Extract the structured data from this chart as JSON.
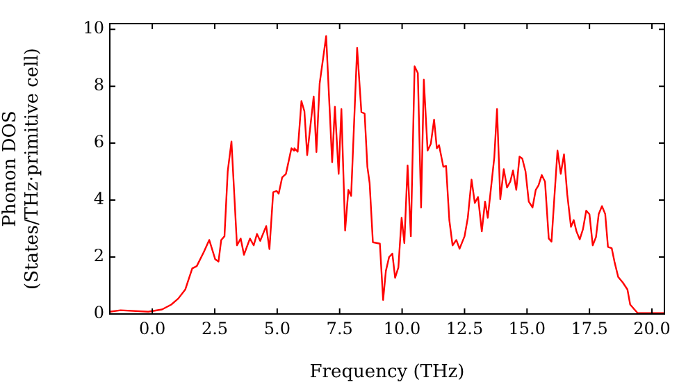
{
  "chart_data": {
    "type": "line",
    "xlabel": "Frequency (THz)",
    "ylabel": "Phonon DOS\n(States/THz·primitive cell)",
    "xlim": [
      -1.7,
      20.5
    ],
    "ylim": [
      0,
      10.2
    ],
    "xticks": [
      {
        "value": 0,
        "label": "0.0"
      },
      {
        "value": 2.5,
        "label": "2.5"
      },
      {
        "value": 5,
        "label": "5.0"
      },
      {
        "value": 7.5,
        "label": "7.5"
      },
      {
        "value": 10,
        "label": "10.0"
      },
      {
        "value": 12.5,
        "label": "12.5"
      },
      {
        "value": 15,
        "label": "15.0"
      },
      {
        "value": 17.5,
        "label": "17.5"
      },
      {
        "value": 20,
        "label": "20.0"
      }
    ],
    "yticks": [
      0,
      2,
      4,
      6,
      8,
      10
    ],
    "grid": false,
    "legend": false,
    "marker": "none",
    "line_style": "solid",
    "series": [
      {
        "color": "#ff0000",
        "x": [
          -1.7,
          -1.27,
          -0.16,
          0.39,
          0.76,
          1.04,
          1.32,
          1.6,
          1.78,
          2.06,
          2.28,
          2.52,
          2.65,
          2.76,
          2.89,
          3.02,
          3.17,
          3.39,
          3.54,
          3.67,
          3.91,
          4.06,
          4.19,
          4.32,
          4.56,
          4.69,
          4.84,
          4.98,
          5.06,
          5.2,
          5.35,
          5.57,
          5.67,
          5.69,
          5.82,
          5.97,
          6.09,
          6.2,
          6.46,
          6.57,
          6.7,
          6.96,
          7.2,
          7.31,
          7.46,
          7.57,
          7.72,
          7.85,
          7.96,
          8.2,
          8.37,
          8.5,
          8.61,
          8.7,
          8.83,
          9.11,
          9.24,
          9.35,
          9.48,
          9.61,
          9.72,
          9.85,
          9.98,
          10.09,
          10.22,
          10.35,
          10.5,
          10.63,
          10.76,
          10.87,
          11.02,
          11.15,
          11.28,
          11.39,
          11.48,
          11.65,
          11.76,
          11.89,
          12.02,
          12.17,
          12.3,
          12.5,
          12.63,
          12.78,
          12.91,
          13.04,
          13.19,
          13.32,
          13.43,
          13.69,
          13.8,
          13.93,
          14.07,
          14.2,
          14.33,
          14.44,
          14.57,
          14.7,
          14.81,
          14.94,
          15.07,
          15.22,
          15.35,
          15.46,
          15.59,
          15.72,
          15.87,
          15.98,
          16.09,
          16.22,
          16.35,
          16.48,
          16.61,
          16.76,
          16.87,
          16.98,
          17.11,
          17.24,
          17.37,
          17.5,
          17.63,
          17.76,
          17.87,
          18.0,
          18.13,
          18.24,
          18.39,
          18.5,
          18.65,
          18.83,
          19.02,
          19.13,
          19.3,
          19.43,
          20.5
        ],
        "values": [
          0.08,
          0.13,
          0.08,
          0.16,
          0.33,
          0.54,
          0.86,
          1.6,
          1.68,
          2.17,
          2.6,
          1.92,
          1.84,
          2.6,
          2.73,
          5.01,
          6.06,
          2.41,
          2.65,
          2.08,
          2.65,
          2.41,
          2.81,
          2.57,
          3.09,
          2.28,
          4.28,
          4.32,
          4.23,
          4.8,
          4.92,
          5.82,
          5.74,
          5.82,
          5.7,
          7.48,
          7.12,
          5.58,
          7.64,
          5.69,
          8.1,
          9.76,
          5.33,
          7.28,
          4.92,
          7.2,
          2.93,
          4.36,
          4.15,
          9.35,
          7.09,
          7.04,
          5.17,
          4.6,
          2.52,
          2.47,
          0.49,
          1.51,
          2.0,
          2.12,
          1.27,
          1.63,
          3.38,
          2.49,
          5.22,
          2.73,
          8.7,
          8.46,
          3.74,
          8.23,
          5.74,
          5.98,
          6.83,
          5.82,
          5.93,
          5.17,
          5.2,
          3.3,
          2.41,
          2.6,
          2.29,
          2.73,
          3.38,
          4.72,
          3.9,
          4.11,
          2.9,
          3.95,
          3.38,
          5.5,
          7.2,
          4.03,
          5.09,
          4.44,
          4.65,
          5.04,
          4.36,
          5.53,
          5.46,
          5.01,
          3.95,
          3.74,
          4.36,
          4.52,
          4.88,
          4.65,
          2.65,
          2.54,
          4.03,
          5.74,
          4.92,
          5.61,
          4.2,
          3.06,
          3.3,
          2.9,
          2.62,
          2.98,
          3.63,
          3.5,
          2.41,
          2.7,
          3.51,
          3.79,
          3.51,
          2.36,
          2.31,
          1.84,
          1.3,
          1.11,
          0.86,
          0.33,
          0.16,
          0.03,
          0.03
        ]
      }
    ]
  }
}
